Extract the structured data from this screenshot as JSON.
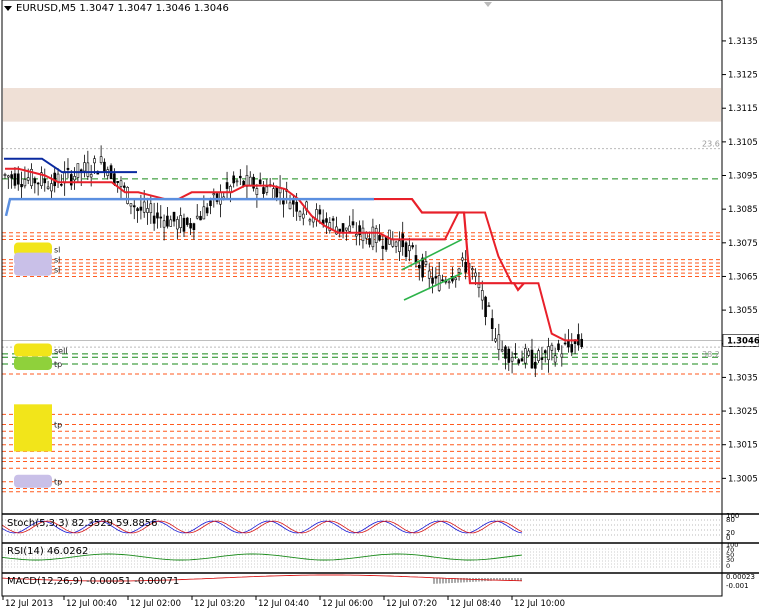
{
  "window": {
    "symbol_label": "EURUSD,M5",
    "ohlc_text": "1.3047 1.3047 1.3046 1.3046"
  },
  "price_axis": {
    "ticks": [
      "1.3135",
      "1.3125",
      "1.3115",
      "1.3105",
      "1.3095",
      "1.3085",
      "1.3075",
      "1.3065",
      "1.3055",
      "1.3045",
      "1.3035",
      "1.3025",
      "1.3015",
      "1.3005"
    ],
    "current_price": "1.3046",
    "fib_labels": [
      "23.6",
      "38.2"
    ]
  },
  "time_axis": {
    "labels": [
      "12 Jul 2013",
      "12 Jul 00:40",
      "12 Jul 02:00",
      "12 Jul 03:20",
      "12 Jul 04:40",
      "12 Jul 06:00",
      "12 Jul 07:20",
      "12 Jul 08:40",
      "12 Jul 10:00"
    ]
  },
  "indicators": {
    "stoch": {
      "label": "Stoch(5,3,3) 82.3529 59.8856",
      "axis": [
        "100",
        "80",
        "20",
        "0"
      ]
    },
    "rsi": {
      "label": "RSI(14) 46.0262",
      "axis": [
        "100",
        "70",
        "50",
        "30",
        "0"
      ]
    },
    "macd": {
      "label": "MACD(12,26,9) -0.00051 -0.00071",
      "axis": [
        "0.00023",
        "-0.001"
      ]
    }
  },
  "order_tags": [
    "sl",
    "sl",
    "sl",
    "sell",
    "tp",
    "tp",
    "tp"
  ],
  "colors": {
    "bull_candle": "#000000",
    "trail_line": "#e8202a",
    "ma_blue": "#5b8fe0",
    "dark_blue": "#0a2aa0",
    "green_dash": "#1a8a1a",
    "orange_dash": "#ff5a1f",
    "supply_zone": "#efe0d6",
    "price_label_bg": "#ffffff"
  },
  "chart_data": {
    "type": "candlestick",
    "symbol": "EURUSD",
    "timeframe": "M5",
    "ylim": [
      1.2995,
      1.3143
    ],
    "current": 1.3046,
    "x": [
      "12 Jul 2013",
      "12 Jul 00:40",
      "12 Jul 02:00",
      "12 Jul 03:20",
      "12 Jul 04:40",
      "12 Jul 06:00",
      "12 Jul 07:20",
      "12 Jul 08:40",
      "12 Jul 10:00"
    ],
    "trail_levels": [
      1.3097,
      1.3097,
      1.3096,
      1.3095,
      1.3093,
      1.3093,
      1.3093,
      1.3093,
      1.3093,
      1.309,
      1.309,
      1.3089,
      1.3088,
      1.3088,
      1.309,
      1.309,
      1.309,
      1.309,
      1.3092,
      1.3092,
      1.3092,
      1.3091,
      1.3088,
      1.3083,
      1.308,
      1.3078,
      1.3078,
      1.3078,
      1.3078,
      1.3076,
      1.3076,
      1.3076,
      1.3076,
      1.3076,
      1.3084,
      1.3084,
      1.3084,
      1.3071,
      1.3063,
      1.3063,
      1.3063,
      1.3048,
      1.3046,
      1.3046
    ],
    "green_levels": [
      1.3094,
      1.3042,
      1.3041,
      1.3039
    ],
    "orange_levels": [
      1.3078,
      1.3077,
      1.3076,
      1.307,
      1.3069,
      1.3068,
      1.3067,
      1.3066,
      1.3065,
      1.3036,
      1.3024,
      1.3021,
      1.3019,
      1.3017,
      1.3015,
      1.3013,
      1.3011,
      1.301,
      1.3008,
      1.3004,
      1.3002,
      1.3001
    ],
    "supply_zone": [
      1.3111,
      1.3121
    ]
  }
}
